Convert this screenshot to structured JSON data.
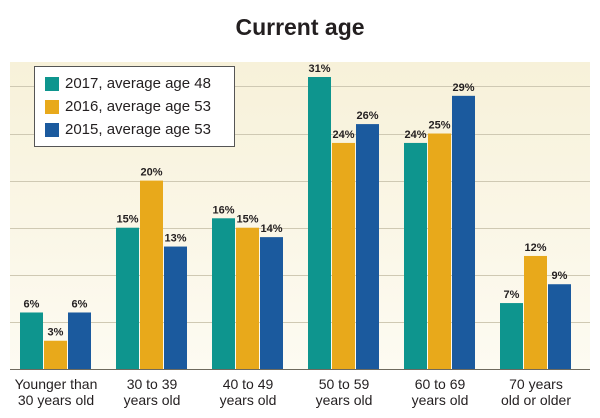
{
  "chart_data": {
    "type": "bar",
    "title": "Current age",
    "categories": [
      [
        "Younger than",
        "30 years old"
      ],
      [
        "30 to 39",
        "years old"
      ],
      [
        "40 to 49",
        "years old"
      ],
      [
        "50 to 59",
        "years old"
      ],
      [
        "60 to 69",
        "years old"
      ],
      [
        "70 years",
        "old or older"
      ]
    ],
    "series": [
      {
        "name": "2017, average age 48",
        "color": "#0e958e",
        "values": [
          6,
          15,
          16,
          31,
          24,
          7
        ]
      },
      {
        "name": "2016, average age 53",
        "color": "#e8a91b",
        "values": [
          3,
          20,
          15,
          24,
          25,
          12
        ]
      },
      {
        "name": "2015, average age 53",
        "color": "#1b5a9e",
        "values": [
          6,
          13,
          14,
          26,
          29,
          9
        ]
      }
    ],
    "value_suffix": "%",
    "ylim": [
      0,
      31
    ],
    "grid": true,
    "legend_position": "top-left",
    "background_colors": [
      "#f7f1d9",
      "#fdfbf2"
    ],
    "grid_color": "#cfc9b3"
  }
}
